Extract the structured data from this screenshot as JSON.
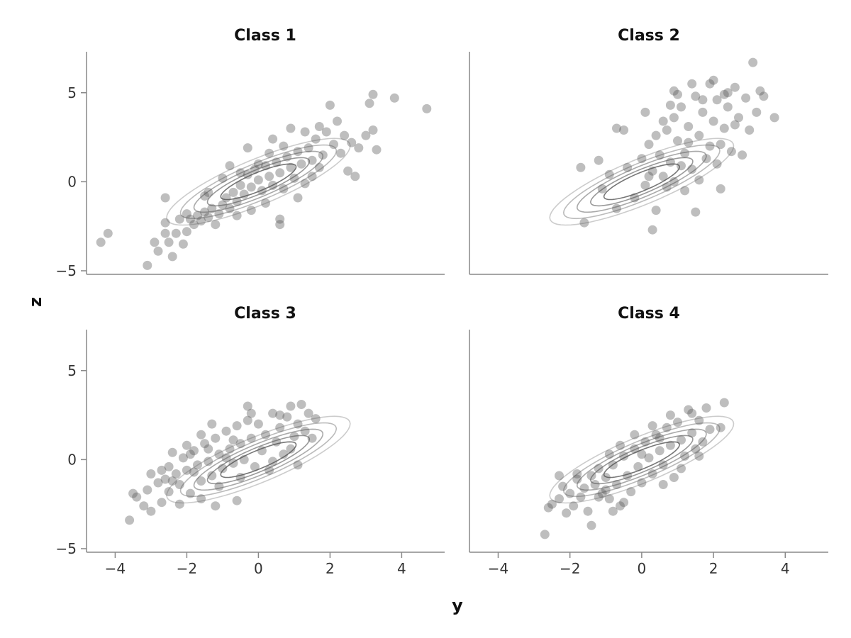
{
  "chart_data": {
    "type": "scatter",
    "xlabel": "y",
    "ylabel": "z",
    "xlim": [
      -4.8,
      5.2
    ],
    "ylim": [
      -5.2,
      7.3
    ],
    "x_ticks": [
      -4,
      -2,
      0,
      2,
      4
    ],
    "y_ticks": [
      -5,
      0,
      5
    ],
    "x_tick_labels": [
      "−4",
      "−2",
      "0",
      "2",
      "4"
    ],
    "y_tick_labels": [
      "−5",
      "0",
      "5"
    ],
    "grid": false,
    "legend": "none",
    "colors": {
      "points": "#555555",
      "contour_outer": "#cccccc",
      "contour_mid": "#999999",
      "contour_inner": "#444444",
      "axis": "#888888"
    },
    "contour_levels": [
      {
        "a": 3.4,
        "b": 1.05,
        "c": "#cccccc"
      },
      {
        "a": 2.9,
        "b": 0.85,
        "c": "#bbbbbb"
      },
      {
        "a": 2.4,
        "b": 0.7,
        "c": "#aaaaaa"
      },
      {
        "a": 1.9,
        "b": 0.55,
        "c": "#999999"
      },
      {
        "a": 1.4,
        "b": 0.42,
        "c": "#777777"
      }
    ],
    "panels": [
      {
        "title": "Class 1",
        "points": [
          [
            -4.4,
            -3.4
          ],
          [
            -4.2,
            -2.9
          ],
          [
            -3.1,
            -4.7
          ],
          [
            -2.9,
            -3.4
          ],
          [
            -2.8,
            -3.9
          ],
          [
            -2.6,
            -2.9
          ],
          [
            -2.5,
            -3.4
          ],
          [
            -2.4,
            -4.2
          ],
          [
            -2.3,
            -2.9
          ],
          [
            -2.1,
            -3.5
          ],
          [
            -2.6,
            -2.3
          ],
          [
            -2.6,
            -0.9
          ],
          [
            -2.2,
            -2.1
          ],
          [
            -2.0,
            -1.8
          ],
          [
            -1.9,
            -2.1
          ],
          [
            -1.8,
            -2.4
          ],
          [
            -1.7,
            -1.9
          ],
          [
            -1.6,
            -2.2
          ],
          [
            -1.5,
            -1.7
          ],
          [
            -1.4,
            -2.0
          ],
          [
            -1.3,
            -1.5
          ],
          [
            -1.2,
            -2.4
          ],
          [
            -1.1,
            -1.8
          ],
          [
            -1.0,
            -1.3
          ],
          [
            -0.9,
            -0.9
          ],
          [
            -0.8,
            -1.5
          ],
          [
            -0.7,
            -0.6
          ],
          [
            -0.6,
            -1.1
          ],
          [
            -0.5,
            -0.2
          ],
          [
            -0.4,
            -0.7
          ],
          [
            -0.3,
            0.4
          ],
          [
            -0.2,
            -0.3
          ],
          [
            -0.1,
            0.7
          ],
          [
            0.0,
            0.1
          ],
          [
            0.1,
            -0.5
          ],
          [
            0.2,
            0.9
          ],
          [
            0.3,
            0.3
          ],
          [
            0.4,
            -0.2
          ],
          [
            0.5,
            1.1
          ],
          [
            0.6,
            0.5
          ],
          [
            0.7,
            -0.4
          ],
          [
            0.8,
            1.4
          ],
          [
            0.9,
            0.8
          ],
          [
            1.0,
            0.2
          ],
          [
            1.1,
            1.7
          ],
          [
            1.2,
            1.0
          ],
          [
            1.3,
            -0.1
          ],
          [
            1.4,
            1.9
          ],
          [
            1.5,
            1.2
          ],
          [
            1.6,
            2.4
          ],
          [
            1.7,
            3.1
          ],
          [
            1.8,
            1.5
          ],
          [
            1.9,
            2.8
          ],
          [
            2.0,
            4.3
          ],
          [
            2.1,
            2.1
          ],
          [
            2.2,
            3.4
          ],
          [
            2.3,
            1.6
          ],
          [
            2.4,
            2.6
          ],
          [
            2.5,
            0.6
          ],
          [
            2.6,
            2.2
          ],
          [
            2.7,
            0.3
          ],
          [
            2.8,
            1.9
          ],
          [
            3.0,
            2.6
          ],
          [
            3.1,
            4.4
          ],
          [
            3.2,
            2.9
          ],
          [
            3.2,
            4.9
          ],
          [
            3.3,
            1.8
          ],
          [
            3.8,
            4.7
          ],
          [
            4.7,
            4.1
          ],
          [
            0.6,
            -2.4
          ],
          [
            0.6,
            -2.1
          ],
          [
            -0.5,
            0.5
          ],
          [
            0.0,
            1.0
          ],
          [
            -1.0,
            0.2
          ],
          [
            -0.3,
            1.9
          ],
          [
            0.4,
            2.4
          ],
          [
            0.9,
            3.0
          ],
          [
            1.5,
            0.3
          ],
          [
            -1.5,
            -0.8
          ],
          [
            -0.6,
            -1.9
          ],
          [
            0.2,
            -1.2
          ],
          [
            1.1,
            -0.9
          ],
          [
            -2.0,
            -2.8
          ],
          [
            -1.4,
            -0.6
          ],
          [
            -0.2,
            -1.6
          ],
          [
            0.7,
            2.0
          ],
          [
            1.3,
            2.8
          ],
          [
            -0.8,
            0.9
          ],
          [
            0.3,
            1.6
          ],
          [
            1.7,
            0.8
          ]
        ]
      },
      {
        "title": "Class 2",
        "points": [
          [
            -1.6,
            -2.3
          ],
          [
            -1.7,
            0.8
          ],
          [
            -1.1,
            -0.4
          ],
          [
            -0.9,
            0.4
          ],
          [
            -0.7,
            -1.5
          ],
          [
            -0.4,
            0.8
          ],
          [
            -0.2,
            -0.9
          ],
          [
            0.0,
            1.3
          ],
          [
            0.1,
            -0.2
          ],
          [
            0.2,
            2.1
          ],
          [
            0.3,
            0.6
          ],
          [
            0.4,
            -1.6
          ],
          [
            0.3,
            -2.7
          ],
          [
            0.5,
            1.5
          ],
          [
            0.6,
            0.3
          ],
          [
            0.7,
            2.9
          ],
          [
            0.8,
            1.1
          ],
          [
            0.9,
            3.6
          ],
          [
            0.9,
            0.0
          ],
          [
            1.0,
            2.3
          ],
          [
            1.1,
            4.2
          ],
          [
            1.2,
            1.6
          ],
          [
            1.3,
            3.1
          ],
          [
            1.4,
            0.7
          ],
          [
            1.5,
            4.8
          ],
          [
            1.5,
            -1.7
          ],
          [
            1.6,
            2.6
          ],
          [
            1.7,
            3.9
          ],
          [
            1.8,
            1.3
          ],
          [
            1.9,
            5.5
          ],
          [
            2.0,
            3.4
          ],
          [
            2.1,
            4.6
          ],
          [
            2.2,
            2.1
          ],
          [
            2.3,
            3.0
          ],
          [
            2.4,
            4.2
          ],
          [
            2.5,
            1.7
          ],
          [
            2.6,
            5.3
          ],
          [
            2.7,
            3.6
          ],
          [
            2.8,
            1.5
          ],
          [
            2.9,
            4.7
          ],
          [
            3.0,
            2.9
          ],
          [
            3.1,
            6.7
          ],
          [
            3.2,
            3.9
          ],
          [
            3.4,
            4.8
          ],
          [
            3.7,
            3.6
          ],
          [
            3.3,
            5.1
          ],
          [
            2.2,
            -0.4
          ],
          [
            1.2,
            -0.5
          ],
          [
            0.6,
            3.4
          ],
          [
            1.0,
            4.9
          ],
          [
            2.0,
            5.7
          ],
          [
            2.4,
            5.0
          ],
          [
            1.4,
            5.5
          ],
          [
            0.1,
            3.9
          ],
          [
            -0.5,
            2.9
          ],
          [
            -0.7,
            3.0
          ],
          [
            -1.2,
            1.2
          ],
          [
            0.8,
            4.3
          ],
          [
            1.7,
            4.6
          ],
          [
            2.6,
            3.2
          ],
          [
            1.9,
            2.0
          ],
          [
            1.1,
            0.9
          ],
          [
            0.2,
            0.3
          ],
          [
            1.6,
            0.1
          ],
          [
            2.1,
            1.0
          ],
          [
            0.7,
            -0.3
          ],
          [
            0.4,
            2.6
          ],
          [
            1.3,
            2.2
          ],
          [
            2.3,
            4.9
          ],
          [
            0.9,
            5.1
          ]
        ]
      },
      {
        "title": "Class 3",
        "points": [
          [
            -3.6,
            -3.4
          ],
          [
            -3.5,
            -1.9
          ],
          [
            -3.4,
            -2.1
          ],
          [
            -3.2,
            -2.6
          ],
          [
            -3.1,
            -1.7
          ],
          [
            -3.0,
            -2.9
          ],
          [
            -3.0,
            -0.8
          ],
          [
            -2.8,
            -1.3
          ],
          [
            -2.7,
            -2.4
          ],
          [
            -2.6,
            -1.1
          ],
          [
            -2.5,
            -0.4
          ],
          [
            -2.5,
            -1.8
          ],
          [
            -2.4,
            0.4
          ],
          [
            -2.3,
            -0.8
          ],
          [
            -2.2,
            -1.4
          ],
          [
            -2.1,
            0.1
          ],
          [
            -2.0,
            -0.6
          ],
          [
            -1.9,
            -1.9
          ],
          [
            -1.8,
            0.5
          ],
          [
            -1.7,
            -0.3
          ],
          [
            -1.6,
            -1.2
          ],
          [
            -1.5,
            0.9
          ],
          [
            -1.4,
            -0.1
          ],
          [
            -1.3,
            -0.9
          ],
          [
            -1.2,
            1.2
          ],
          [
            -1.1,
            0.3
          ],
          [
            -1.0,
            -0.5
          ],
          [
            -0.9,
            1.6
          ],
          [
            -0.8,
            0.6
          ],
          [
            -0.7,
            -0.2
          ],
          [
            -0.6,
            1.9
          ],
          [
            -0.5,
            0.9
          ],
          [
            -0.4,
            0.0
          ],
          [
            -0.3,
            2.2
          ],
          [
            -0.2,
            1.2
          ],
          [
            -0.1,
            -0.4
          ],
          [
            0.0,
            2.0
          ],
          [
            0.1,
            0.5
          ],
          [
            0.2,
            1.4
          ],
          [
            0.3,
            -0.6
          ],
          [
            0.4,
            2.6
          ],
          [
            0.5,
            1.0
          ],
          [
            0.6,
            1.8
          ],
          [
            0.7,
            0.3
          ],
          [
            0.8,
            2.4
          ],
          [
            0.9,
            3.0
          ],
          [
            1.0,
            1.3
          ],
          [
            1.1,
            2.0
          ],
          [
            1.2,
            3.1
          ],
          [
            1.3,
            1.6
          ],
          [
            1.4,
            2.6
          ],
          [
            1.5,
            1.2
          ],
          [
            1.6,
            2.3
          ],
          [
            -1.2,
            -2.6
          ],
          [
            -1.6,
            -2.2
          ],
          [
            -0.6,
            -2.3
          ],
          [
            -2.2,
            -2.5
          ],
          [
            -0.3,
            3.0
          ],
          [
            -1.4,
            0.6
          ],
          [
            -1.8,
            -0.7
          ],
          [
            -2.4,
            -1.2
          ],
          [
            -1.1,
            -1.5
          ],
          [
            -0.9,
            0.1
          ],
          [
            -1.6,
            1.4
          ],
          [
            -2.0,
            0.8
          ],
          [
            -0.7,
            1.1
          ],
          [
            -1.3,
            2.0
          ],
          [
            0.4,
            -0.1
          ],
          [
            0.9,
            0.6
          ],
          [
            1.1,
            -0.3
          ],
          [
            -0.2,
            2.6
          ],
          [
            0.6,
            2.5
          ],
          [
            -1.9,
            0.3
          ],
          [
            -2.7,
            -0.6
          ],
          [
            -0.5,
            -1.0
          ]
        ]
      },
      {
        "title": "Class 4",
        "points": [
          [
            -2.7,
            -4.2
          ],
          [
            -2.6,
            -2.7
          ],
          [
            -2.5,
            -2.5
          ],
          [
            -2.3,
            -2.2
          ],
          [
            -2.2,
            -1.5
          ],
          [
            -2.1,
            -3.0
          ],
          [
            -2.0,
            -1.9
          ],
          [
            -1.9,
            -2.6
          ],
          [
            -1.8,
            -1.1
          ],
          [
            -1.7,
            -2.1
          ],
          [
            -1.6,
            -1.6
          ],
          [
            -1.5,
            -2.9
          ],
          [
            -1.4,
            -3.7
          ],
          [
            -1.3,
            -1.4
          ],
          [
            -1.2,
            -0.5
          ],
          [
            -1.1,
            -1.9
          ],
          [
            -1.0,
            -1.0
          ],
          [
            -0.9,
            -2.2
          ],
          [
            -0.8,
            -0.3
          ],
          [
            -0.7,
            -1.4
          ],
          [
            -0.6,
            -2.6
          ],
          [
            -0.5,
            0.2
          ],
          [
            -0.4,
            -0.9
          ],
          [
            -0.3,
            -1.8
          ],
          [
            -0.2,
            0.6
          ],
          [
            -0.1,
            -0.4
          ],
          [
            0.0,
            -1.3
          ],
          [
            0.1,
            1.0
          ],
          [
            0.2,
            0.1
          ],
          [
            0.3,
            -0.8
          ],
          [
            0.4,
            1.4
          ],
          [
            0.5,
            0.5
          ],
          [
            0.6,
            -0.3
          ],
          [
            0.7,
            1.8
          ],
          [
            0.8,
            0.8
          ],
          [
            0.9,
            -1.0
          ],
          [
            1.0,
            2.1
          ],
          [
            1.1,
            1.1
          ],
          [
            1.2,
            0.2
          ],
          [
            1.3,
            2.8
          ],
          [
            1.4,
            1.5
          ],
          [
            1.5,
            0.6
          ],
          [
            1.6,
            2.2
          ],
          [
            1.7,
            1.0
          ],
          [
            1.8,
            2.9
          ],
          [
            1.9,
            1.7
          ],
          [
            2.2,
            1.8
          ],
          [
            2.3,
            3.2
          ],
          [
            -0.8,
            -2.9
          ],
          [
            -0.5,
            -2.4
          ],
          [
            -1.2,
            -2.1
          ],
          [
            -1.8,
            -0.8
          ],
          [
            0.3,
            1.9
          ],
          [
            0.8,
            2.5
          ],
          [
            1.1,
            -0.5
          ],
          [
            -0.2,
            1.4
          ],
          [
            -0.9,
            0.3
          ],
          [
            -1.4,
            -0.9
          ],
          [
            0.6,
            -1.4
          ],
          [
            1.6,
            0.2
          ],
          [
            -0.6,
            0.8
          ],
          [
            0.0,
            0.3
          ],
          [
            1.4,
            2.6
          ],
          [
            -2.3,
            -0.9
          ],
          [
            -1.0,
            -1.7
          ],
          [
            0.5,
            1.2
          ]
        ]
      }
    ]
  },
  "labels": {
    "xlabel": "y",
    "ylabel": "z",
    "titles": [
      "Class 1",
      "Class 2",
      "Class 3",
      "Class 4"
    ]
  }
}
